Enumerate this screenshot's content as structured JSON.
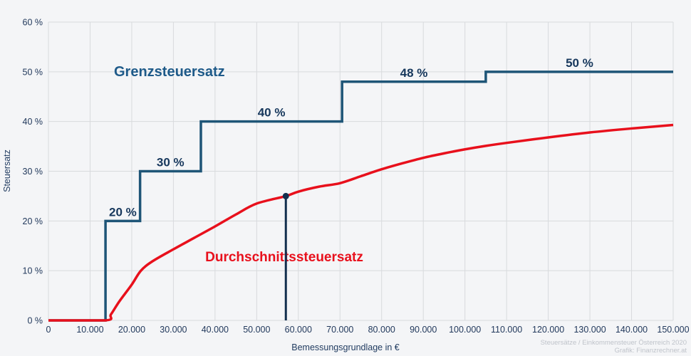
{
  "chart_data": {
    "type": "line",
    "title": "",
    "xlabel": "Bemessungsgrundlage in €",
    "ylabel": "Steuersatz",
    "xlim": [
      0,
      150000
    ],
    "ylim": [
      0,
      60
    ],
    "grid": true,
    "x_tick_values": [
      0,
      10000,
      20000,
      30000,
      40000,
      50000,
      60000,
      70000,
      80000,
      90000,
      100000,
      110000,
      120000,
      130000,
      140000,
      150000
    ],
    "x_tick_labels": [
      "0",
      "10.000",
      "20.000",
      "30.000",
      "40.000",
      "50.000",
      "60.000",
      "70.000",
      "80.000",
      "90.000",
      "100.000",
      "110.000",
      "120.000",
      "130.000",
      "140.000",
      "150.000"
    ],
    "y_tick_values": [
      0,
      10,
      20,
      30,
      40,
      50,
      60
    ],
    "y_tick_labels": [
      "0 %",
      "10 %",
      "20 %",
      "30 %",
      "40 %",
      "50 %",
      "60 %"
    ],
    "series": [
      {
        "name": "Grenzsteuersatz",
        "type": "step",
        "color": "#1e5577",
        "steps": [
          {
            "from": 0,
            "to": 13700,
            "rate": 0,
            "label": ""
          },
          {
            "from": 13700,
            "to": 22000,
            "rate": 20,
            "label": "20 %"
          },
          {
            "from": 22000,
            "to": 36600,
            "rate": 30,
            "label": "30 %"
          },
          {
            "from": 36600,
            "to": 70500,
            "rate": 40,
            "label": "40 %"
          },
          {
            "from": 70500,
            "to": 105000,
            "rate": 48,
            "label": "48 %"
          },
          {
            "from": 105000,
            "to": 150000,
            "rate": 50,
            "label": "50 %"
          }
        ]
      },
      {
        "name": "Durchschnittssteuersatz",
        "type": "curve",
        "color": "#e8101c",
        "points": [
          [
            0,
            0
          ],
          [
            13700,
            0
          ],
          [
            15000,
            1.2
          ],
          [
            17000,
            3.8
          ],
          [
            20000,
            7.2
          ],
          [
            22200,
            10.0
          ],
          [
            25000,
            11.9
          ],
          [
            30000,
            14.3
          ],
          [
            35000,
            16.6
          ],
          [
            40000,
            18.9
          ],
          [
            45000,
            21.3
          ],
          [
            50000,
            23.5
          ],
          [
            57000,
            25.0
          ],
          [
            60000,
            25.9
          ],
          [
            65000,
            26.9
          ],
          [
            70000,
            27.6
          ],
          [
            75000,
            29.0
          ],
          [
            80000,
            30.4
          ],
          [
            85000,
            31.6
          ],
          [
            90000,
            32.7
          ],
          [
            95000,
            33.6
          ],
          [
            100000,
            34.4
          ],
          [
            105000,
            35.1
          ],
          [
            110000,
            35.7
          ],
          [
            120000,
            36.8
          ],
          [
            130000,
            37.8
          ],
          [
            140000,
            38.6
          ],
          [
            150000,
            39.3
          ]
        ]
      }
    ],
    "marker": {
      "x": 57000,
      "y": 25.0,
      "color": "#132f4e"
    },
    "legend_position": "inline-labels"
  },
  "colors": {
    "background": "#f4f5f7",
    "gridline": "#d8dadd",
    "marginal_line": "#1e5577",
    "average_line": "#e8101c",
    "marker": "#132f4e",
    "tick_text": "#22395c",
    "attribution_text": "#bfc3ca"
  },
  "attribution": {
    "line1": "Steuersätze / Einkommensteuer Österreich 2020",
    "line2": "Grafik: Finanzrechner.at"
  }
}
